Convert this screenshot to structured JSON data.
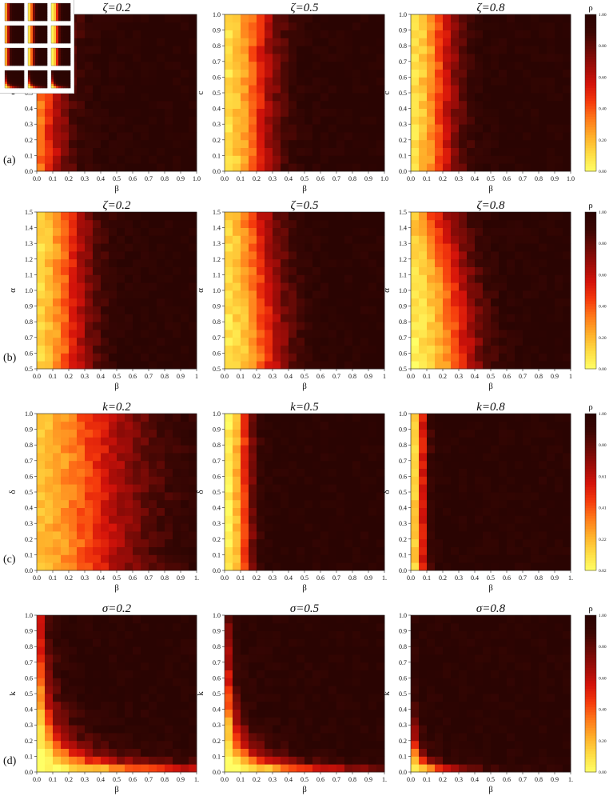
{
  "figure": {
    "colorbar_title": "ρ",
    "colormap": [
      "#ffff66",
      "#ffdd44",
      "#ffb02a",
      "#ff7a1a",
      "#f53a0c",
      "#d4130a",
      "#9e0c08",
      "#6a0a06",
      "#3a0603",
      "#2a0402"
    ]
  },
  "chart_data": [
    {
      "row": "a",
      "panel_label": "(a)",
      "type": "heatmap",
      "ylabel": "c",
      "xlabel": "β",
      "xticks": [
        "0.0",
        "0.1",
        "0.2",
        "0.3",
        "0.4",
        "0.5",
        "0.6",
        "0.7",
        "0.8",
        "0.9",
        "1.0"
      ],
      "yticks": [
        "0.0",
        "0.1",
        "0.2",
        "0.3",
        "0.4",
        "0.5",
        "0.6",
        "0.7",
        "0.8",
        "0.9",
        "1.0"
      ],
      "grid": [
        20,
        20
      ],
      "colorbar_ticks": [
        "0.00",
        "0.20",
        "0.40",
        "0.60",
        "0.80",
        "1.00"
      ],
      "panels": [
        {
          "title": "ζ=0.2",
          "p0": 0.08,
          "p1": 0.08,
          "w": 0.09,
          "g": 0.0,
          "mode": "beta"
        },
        {
          "title": "ζ=0.5",
          "p0": 0.22,
          "p1": 0.22,
          "w": 0.09,
          "g": 0.0,
          "mode": "beta"
        },
        {
          "title": "ζ=0.8",
          "p0": 0.2,
          "p1": 0.2,
          "w": 0.08,
          "g": 0.0,
          "mode": "beta"
        }
      ]
    },
    {
      "row": "b",
      "panel_label": "(b)",
      "type": "heatmap",
      "ylabel": "α",
      "xlabel": "β",
      "xticks": [
        "0.0",
        "0.1",
        "0.2",
        "0.3",
        "0.4",
        "0.5",
        "0.6",
        "0.7",
        "0.8",
        "0.9",
        "1"
      ],
      "yticks": [
        "0.5",
        "0.6",
        "0.7",
        "0.8",
        "0.9",
        "1.0",
        "1.1",
        "1.2",
        "1.3",
        "1.4",
        "1.5"
      ],
      "grid": [
        20,
        20
      ],
      "colorbar_ticks": [
        "0.00",
        "0.20",
        "0.40",
        "0.60",
        "0.80",
        "1.00"
      ],
      "panels": [
        {
          "title": "ζ=0.2",
          "p0": 0.22,
          "p1": 0.22,
          "w": 0.1,
          "g": 0.0,
          "mode": "beta"
        },
        {
          "title": "ζ=0.5",
          "p0": 0.28,
          "p1": 0.2,
          "w": 0.1,
          "g": 1.6,
          "mode": "beta"
        },
        {
          "title": "ζ=0.8",
          "p0": 0.32,
          "p1": 0.16,
          "w": 0.1,
          "g": 2.0,
          "mode": "beta"
        }
      ]
    },
    {
      "row": "c",
      "panel_label": "(c)",
      "type": "heatmap",
      "ylabel": "δ",
      "xlabel": "β",
      "xticks": [
        "0.0",
        "0.1",
        "0.2",
        "0.3",
        "0.4",
        "0.5",
        "0.6",
        "0.7",
        "0.8",
        "0.9",
        "1."
      ],
      "yticks": [
        "0.0",
        "0.1",
        "0.2",
        "0.3",
        "0.4",
        "0.5",
        "0.6",
        "0.7",
        "0.8",
        "0.9",
        "1.0"
      ],
      "grid": [
        20,
        20
      ],
      "colorbar_ticks": [
        "0.02",
        "0.22",
        "0.41",
        "0.61",
        "0.80",
        "1.00"
      ],
      "panels": [
        {
          "title": "k=0.2",
          "p0": 0.38,
          "p1": 0.38,
          "w": 0.22,
          "g": 0.0,
          "mode": "beta"
        },
        {
          "title": "k=0.5",
          "p0": 0.13,
          "p1": 0.13,
          "w": 0.04,
          "g": 0.0,
          "mode": "beta"
        },
        {
          "title": "k=0.8",
          "p0": 0.07,
          "p1": 0.07,
          "w": 0.025,
          "g": 0.0,
          "mode": "beta"
        }
      ]
    },
    {
      "row": "d",
      "panel_label": "(d)",
      "type": "heatmap",
      "ylabel": "k",
      "xlabel": "β",
      "xticks": [
        "0.0",
        "0.1",
        "0.2",
        "0.3",
        "0.4",
        "0.5",
        "0.6",
        "0.7",
        "0.8",
        "0.9",
        "1."
      ],
      "yticks": [
        "0.0",
        "0.1",
        "0.2",
        "0.3",
        "0.4",
        "0.5",
        "0.6",
        "0.7",
        "0.8",
        "0.9",
        "1.0"
      ],
      "grid": [
        20,
        20
      ],
      "colorbar_ticks": [
        "0.00",
        "0.20",
        "0.40",
        "0.60",
        "0.80",
        "1.00"
      ],
      "panels": [
        {
          "title": "σ=0.2",
          "c": 0.035,
          "s": 0.5,
          "mode": "hyper"
        },
        {
          "title": "σ=0.5",
          "c": 0.025,
          "s": 0.45,
          "mode": "hyper"
        },
        {
          "title": "σ=0.8",
          "c": 0.009,
          "s": 0.45,
          "mode": "hyper"
        }
      ]
    }
  ]
}
